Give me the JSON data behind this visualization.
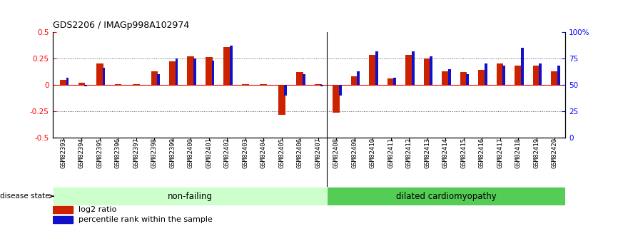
{
  "title": "GDS2206 / IMAGp998A102974",
  "samples": [
    "GSM82393",
    "GSM82394",
    "GSM82395",
    "GSM82396",
    "GSM82397",
    "GSM82398",
    "GSM82399",
    "GSM82400",
    "GSM82401",
    "GSM82402",
    "GSM82403",
    "GSM82404",
    "GSM82405",
    "GSM82406",
    "GSM82407",
    "GSM82408",
    "GSM82409",
    "GSM82410",
    "GSM82411",
    "GSM82412",
    "GSM82413",
    "GSM82414",
    "GSM82415",
    "GSM82416",
    "GSM82417",
    "GSM82418",
    "GSM82419",
    "GSM82420"
  ],
  "log2_ratio": [
    0.05,
    0.02,
    0.2,
    0.01,
    0.01,
    0.13,
    0.22,
    0.27,
    0.26,
    0.36,
    0.01,
    0.01,
    -0.28,
    0.12,
    0.01,
    -0.26,
    0.08,
    0.28,
    0.06,
    0.28,
    0.25,
    0.13,
    0.12,
    0.14,
    0.2,
    0.18,
    0.18,
    0.13
  ],
  "percentile": [
    57,
    49,
    66,
    50,
    50,
    60,
    75,
    75,
    73,
    87,
    50,
    50,
    40,
    60,
    49,
    40,
    63,
    82,
    57,
    82,
    77,
    65,
    60,
    70,
    68,
    85,
    70,
    68
  ],
  "non_failing_count": 15,
  "ylim_left": [
    -0.5,
    0.5
  ],
  "yticks_left": [
    -0.5,
    -0.25,
    0.0,
    0.25,
    0.5
  ],
  "ytick_labels_left": [
    "-0.5",
    "-0.25",
    "0",
    "0.25",
    "0.5"
  ],
  "yticks_right": [
    0,
    25,
    50,
    75,
    100
  ],
  "ytick_labels_right": [
    "0",
    "25",
    "50",
    "75",
    "100%"
  ],
  "bar_color_red": "#cc2200",
  "bar_color_blue": "#1111cc",
  "hline_color": "#dd0000",
  "dotted_line_color": "#555555",
  "disease_state_label": "disease state",
  "group1_label": "non-failing",
  "group2_label": "dilated cardiomyopathy",
  "group1_color": "#ccffcc",
  "group2_color": "#55cc55",
  "legend_red": "log2 ratio",
  "legend_blue": "percentile rank within the sample"
}
